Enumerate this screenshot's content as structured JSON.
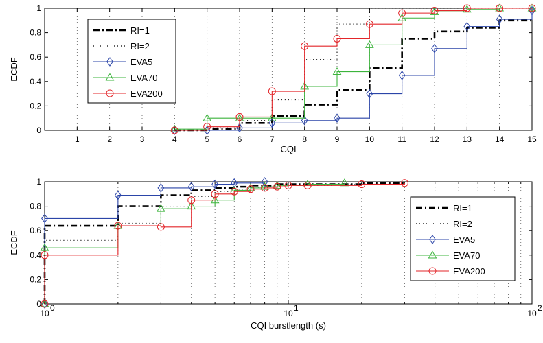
{
  "colors": {
    "RI=1": "#000000",
    "RI=2": "#000000",
    "EVA5": "#2b45a8",
    "EVA70": "#3cb43c",
    "EVA200": "#e3262a"
  },
  "chart_data": [
    {
      "type": "line",
      "step": true,
      "xlabel": "CQI",
      "ylabel": "ECDF",
      "xlim": [
        0,
        15
      ],
      "ylim": [
        0,
        1
      ],
      "xticks": [
        1,
        2,
        3,
        4,
        5,
        6,
        7,
        8,
        9,
        10,
        11,
        12,
        13,
        14,
        15
      ],
      "yticks": [
        0,
        0.2,
        0.4,
        0.6,
        0.8,
        1
      ],
      "ytick_labels": [
        "0",
        "0.2",
        "0.4",
        "0.6",
        "0.8",
        "1"
      ],
      "legend": "top-left",
      "series": [
        {
          "name": "RI=1",
          "style": "dashdot",
          "marker": "none",
          "x": [
            4,
            5,
            6,
            7,
            8,
            9,
            10,
            11,
            12,
            13,
            14,
            15
          ],
          "y": [
            0,
            0.01,
            0.06,
            0.12,
            0.21,
            0.33,
            0.51,
            0.75,
            0.81,
            0.84,
            0.9,
            0.9
          ]
        },
        {
          "name": "RI=2",
          "style": "dotted",
          "marker": "none",
          "x": [
            4,
            5,
            6,
            7,
            8,
            9,
            10,
            11,
            12,
            13,
            14,
            15
          ],
          "y": [
            0,
            0.02,
            0.08,
            0.25,
            0.58,
            0.87,
            1.0,
            1.0,
            1.0,
            1.0,
            1.0,
            1.0
          ]
        },
        {
          "name": "EVA5",
          "style": "solid",
          "marker": "diamond",
          "x": [
            4,
            5,
            6,
            7,
            8,
            9,
            10,
            11,
            12,
            13,
            14,
            15
          ],
          "y": [
            0,
            0,
            0.02,
            0.06,
            0.08,
            0.1,
            0.3,
            0.45,
            0.67,
            0.85,
            0.91,
            0.98
          ]
        },
        {
          "name": "EVA70",
          "style": "solid",
          "marker": "triangle",
          "x": [
            4,
            5,
            6,
            7,
            8,
            9,
            10,
            11,
            12,
            13,
            14,
            15
          ],
          "y": [
            0.01,
            0.1,
            0.1,
            0.1,
            0.36,
            0.48,
            0.7,
            0.92,
            0.97,
            0.99,
            1.0,
            1.0
          ]
        },
        {
          "name": "EVA200",
          "style": "solid",
          "marker": "circle",
          "x": [
            4,
            5,
            6,
            7,
            8,
            9,
            10,
            11,
            12,
            13,
            14,
            15
          ],
          "y": [
            0,
            0.03,
            0.11,
            0.32,
            0.69,
            0.75,
            0.87,
            0.96,
            0.98,
            1.0,
            1.0,
            1.0
          ]
        }
      ]
    },
    {
      "type": "line",
      "step": true,
      "xscale": "log",
      "xlabel": "CQI burstlength (s)",
      "ylabel": "ECDF",
      "xlim": [
        1,
        100
      ],
      "ylim": [
        0,
        1
      ],
      "xtick_labels": [
        {
          "value": 1,
          "base": "10",
          "exp": "0"
        },
        {
          "value": 10,
          "base": "10",
          "exp": "1"
        },
        {
          "value": 100,
          "base": "10",
          "exp": "2"
        }
      ],
      "yticks": [
        0,
        0.2,
        0.4,
        0.6,
        0.8,
        1
      ],
      "ytick_labels": [
        "0",
        "0.2",
        "0.4",
        "0.6",
        "0.8",
        "1"
      ],
      "legend": "right",
      "series": [
        {
          "name": "RI=1",
          "style": "dashdot",
          "marker": "none",
          "x": [
            1,
            1,
            2,
            3,
            4,
            5,
            6,
            7,
            8,
            9,
            10,
            15,
            20,
            30
          ],
          "y": [
            0,
            0.64,
            0.8,
            0.89,
            0.93,
            0.95,
            0.96,
            0.97,
            0.97,
            0.98,
            0.98,
            0.98,
            0.99,
            0.99
          ]
        },
        {
          "name": "RI=2",
          "style": "dotted",
          "marker": "none",
          "x": [
            1,
            1,
            2,
            3,
            4,
            5,
            6,
            7,
            8,
            9,
            10,
            15,
            20,
            30
          ],
          "y": [
            0,
            0.52,
            0.66,
            0.8,
            0.88,
            0.92,
            0.94,
            0.95,
            0.96,
            0.97,
            0.97,
            0.98,
            0.98,
            0.99
          ]
        },
        {
          "name": "EVA5",
          "style": "solid",
          "marker": "diamond",
          "x": [
            1,
            1,
            2,
            3,
            4,
            5,
            6,
            8
          ],
          "y": [
            0,
            0.7,
            0.89,
            0.95,
            0.96,
            0.98,
            0.99,
            1.0
          ]
        },
        {
          "name": "EVA70",
          "style": "solid",
          "marker": "triangle",
          "x": [
            1,
            1,
            2,
            3,
            4,
            5,
            6,
            7,
            8,
            9,
            12,
            17
          ],
          "y": [
            0,
            0.46,
            0.64,
            0.78,
            0.8,
            0.85,
            0.93,
            0.95,
            0.96,
            0.97,
            0.98,
            0.99
          ]
        },
        {
          "name": "EVA200",
          "style": "solid",
          "marker": "circle",
          "x": [
            1,
            1,
            2,
            3,
            4,
            5,
            6,
            7,
            8,
            9,
            10,
            12,
            20,
            30
          ],
          "y": [
            0,
            0.4,
            0.64,
            0.63,
            0.85,
            0.9,
            0.92,
            0.94,
            0.95,
            0.96,
            0.97,
            0.97,
            0.98,
            0.99
          ]
        }
      ]
    }
  ]
}
